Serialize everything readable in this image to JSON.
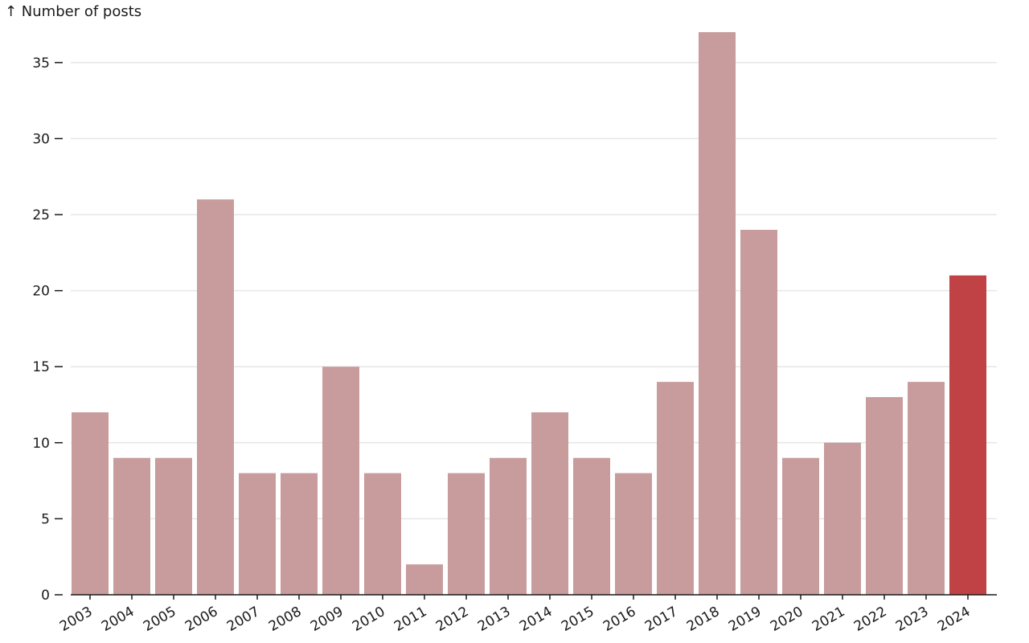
{
  "chart_data": {
    "type": "bar",
    "title": "",
    "ylabel": "↑ Number of posts",
    "xlabel": "",
    "categories": [
      "2003",
      "2004",
      "2005",
      "2006",
      "2007",
      "2008",
      "2009",
      "2010",
      "2011",
      "2012",
      "2013",
      "2014",
      "2015",
      "2016",
      "2017",
      "2018",
      "2019",
      "2020",
      "2021",
      "2022",
      "2023",
      "2024"
    ],
    "values": [
      12,
      9,
      9,
      26,
      8,
      8,
      15,
      8,
      2,
      8,
      9,
      12,
      9,
      8,
      14,
      37,
      24,
      9,
      10,
      13,
      14,
      21
    ],
    "ylim": [
      0,
      37
    ],
    "yticks": [
      0,
      5,
      10,
      15,
      20,
      25,
      30,
      35
    ],
    "grid": true,
    "highlight_category": "2024",
    "colors": {
      "bar": "#c89c9c",
      "highlight": "#c04244",
      "grid": "#e6e6e6",
      "axis": "#1a1a1a"
    }
  }
}
